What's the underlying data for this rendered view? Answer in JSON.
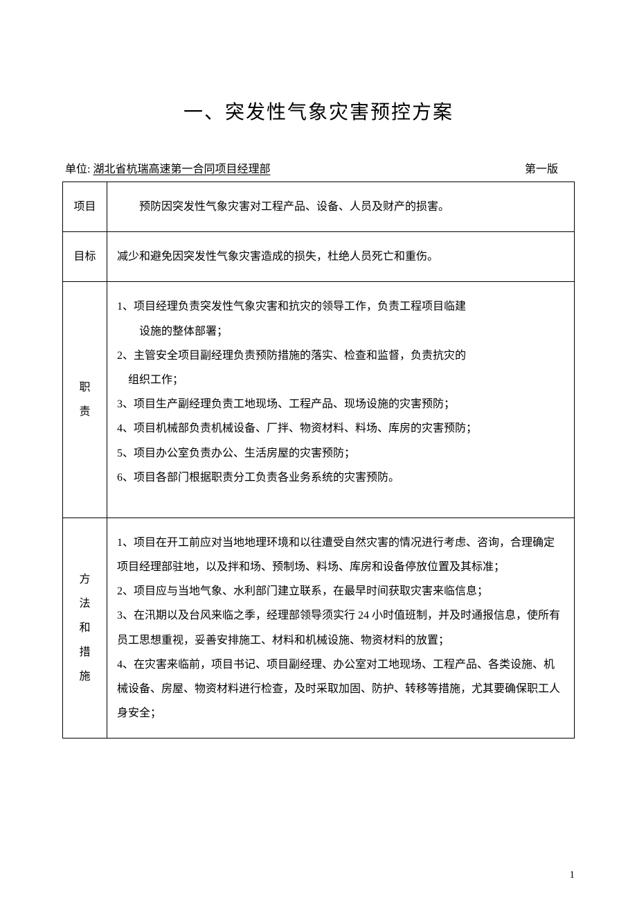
{
  "title": "一、突发性气象灾害预控方案",
  "unit_label": "单位:",
  "unit_value": "湖北省杭瑞高速第一合同项目经理部",
  "version": "第一版",
  "page_number": "1",
  "rows": {
    "r1": {
      "header": "项目",
      "content": "预防因突发性气象灾害对工程产品、设备、人员及财产的损害。"
    },
    "r2": {
      "header": "目标",
      "content": "减少和避免因突发性气象灾害造成的损失，杜绝人员死亡和重伤。"
    },
    "r3": {
      "header_c1": "职",
      "header_c2": "责",
      "line1a": "1、项目经理负责突发性气象灾害和抗灾的领导工作，负责工程项目临建",
      "line1b": "设施的整体部署；",
      "line2a": "2、主管安全项目副经理负责预防措施的落实、检查和监督，负责抗灾的",
      "line2b": "组织工作；",
      "line3": "3、项目生产副经理负责工地现场、工程产品、现场设施的灾害预防；",
      "line4": "4、项目机械部负责机械设备、厂拌、物资材料、料场、库房的灾害预防；",
      "line5": "5、项目办公室负责办公、生活房屋的灾害预防；",
      "line6": "6、项目各部门根据职责分工负责各业务系统的灾害预防。"
    },
    "r4": {
      "header_c1": "方",
      "header_c2": "法",
      "header_c3": "和",
      "header_c4": "措",
      "header_c5": "施",
      "line1": "1、项目在开工前应对当地地理环境和以往遭受自然灾害的情况进行考虑、咨询，合理确定项目经理部驻地，以及拌和场、预制场、料场、库房和设备停放位置及其标准；",
      "line2": "2、项目应与当地气象、水利部门建立联系，在最早时间获取灾害来临信息；",
      "line3": "3、在汛期以及台风来临之季，经理部领导须实行 24 小时值班制，并及时通报信息，使所有员工思想重视，妥善安排施工、材料和机械设施、物资材料的放置；",
      "line4": "4、在灾害来临前，项目书记、项目副经理、办公室对工地现场、工程产品、各类设施、机械设备、房屋、物资材料进行检查，及时采取加固、防护、转移等措施，尤其要确保职工人身安全；"
    }
  }
}
